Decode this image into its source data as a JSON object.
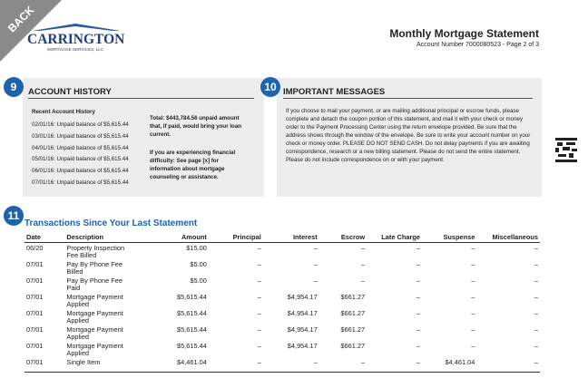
{
  "corner": "BACK",
  "logo": {
    "name": "CARRINGTON",
    "tagline": "MORTGAGE SERVICES, LLC"
  },
  "header": {
    "title": "Monthly Mortgage Statement",
    "subtitle": "Account Number 7000080523 - Page 2 of 3"
  },
  "account_history": {
    "number": "9",
    "heading": "ACCOUNT HISTORY",
    "list_title": "Recent Account History",
    "entries": [
      "02/01/16: Unpaid balance of $5,615.44",
      "03/01/16: Unpaid balance of $5,615.44",
      "04/01/16: Unpaid balance of $5,615.44",
      "05/01/16: Unpaid balance of $5,615.44",
      "06/01/16: Unpaid balance of $5,615.44",
      "07/01/16: Unpaid balance of $5,615.44"
    ],
    "total": "Total: $443,784.56 unpaid amount that, if paid, would bring your loan current.",
    "difficulty": "If you are experiencing financial difficulty: See page [x] for information about mortgage counseling or assistance."
  },
  "messages": {
    "number": "10",
    "heading": "IMPORTANT MESSAGES",
    "text": "If you choose to mail your payment, or are mailing additional principal or escrow funds, please complete and detach the coupon portion of this statement, and mail it with your check or money order to the Payment Processing Center using the return envelope provided.  Be sure that the address shows  through the window of the envelope.  Be sure to write your account number on your check or money order.  PLEASE DO NOT SEND CASH.  Do not delay payments if you are awaiting correspondence, research or a new billing statement.  Please do not send the entire statement.  Please do not include correspondence on or with your payment."
  },
  "transactions": {
    "number": "11",
    "heading": "Transactions Since Your Last Statement",
    "columns": [
      "Date",
      "Description",
      "Amount",
      "Principal",
      "Interest",
      "Escrow",
      "Late Charge",
      "Suspense",
      "Miscellaneous"
    ],
    "rows": [
      [
        "06/20",
        "Property Inspection Fee Billed",
        "$15.00",
        "–",
        "–",
        "–",
        "–",
        "–",
        "–"
      ],
      [
        "07/01",
        "Pay By Phone Fee Billed",
        "$5.00",
        "–",
        "–",
        "–",
        "–",
        "–",
        "–"
      ],
      [
        "07/01",
        "Pay By Phone Fee Paid",
        "$5.00",
        "–",
        "–",
        "–",
        "–",
        "–",
        "–"
      ],
      [
        "07/01",
        "Mortgage Payment Applied",
        "$5,615.44",
        "–",
        "$4,954.17",
        "$661.27",
        "–",
        "–",
        "–"
      ],
      [
        "07/01",
        "Mortgage Payment Applied",
        "$5,615.44",
        "–",
        "$4,954.17",
        "$661.27",
        "–",
        "–",
        "–"
      ],
      [
        "07/01",
        "Mortgage Payment Applied",
        "$5,615.44",
        "–",
        "$4,954.17",
        "$661.27",
        "–",
        "–",
        "–"
      ],
      [
        "07/01",
        "Mortgage Payment Applied",
        "$5,615.44",
        "–",
        "$4,954.17",
        "$661.27",
        "–",
        "–",
        "–"
      ],
      [
        "07/01",
        "Single Item",
        "$4,461.04",
        "–",
        "–",
        "–",
        "–",
        "$4,461.04",
        "–"
      ]
    ]
  }
}
